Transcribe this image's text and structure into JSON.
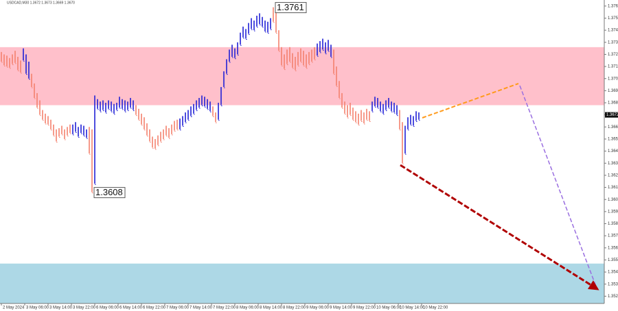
{
  "chart_data": {
    "type": "hlbars",
    "title": "USDCAD,M30 1.3672 1.3673 1.3669 1.3670",
    "ylim": [
      1.3516,
      1.3767
    ],
    "yticks": [
      1.3762,
      1.3752,
      1.3742,
      1.3732,
      1.3722,
      1.3712,
      1.3702,
      1.3692,
      1.3682,
      1.3672,
      1.3662,
      1.3652,
      1.3642,
      1.3632,
      1.3622,
      1.3612,
      1.3602,
      1.3592,
      1.3582,
      1.3572,
      1.3562,
      1.3552,
      1.3542,
      1.3532,
      1.3522
    ],
    "xlabels": [
      "2 May 2024",
      "3 May 06:00",
      "3 May 14:00",
      "3 May 22:00",
      "6 May 06:00",
      "6 May 14:00",
      "6 May 22:00",
      "7 May 06:00",
      "7 May 14:00",
      "7 May 22:00",
      "8 May 06:00",
      "8 May 14:00",
      "8 May 22:00",
      "9 May 06:00",
      "9 May 14:00",
      "9 May 22:00",
      "10 May 06:00",
      "10 May 14:00",
      "10 May 22:00"
    ],
    "current_price": 1.3672,
    "annotations": [
      1.3761,
      1.3608
    ],
    "zones": [
      {
        "from": 1.3728,
        "to": 1.368,
        "color": "#ffc0cb"
      },
      {
        "from": 1.3549,
        "to": 1.3516,
        "color": "#add8e6"
      }
    ],
    "waves": [
      {
        "color": "#f4806d",
        "high": [
          1.3724,
          1.3722,
          1.3721,
          1.3719,
          1.3722,
          1.3725,
          1.372,
          1.3717
        ],
        "low": [
          1.3716,
          1.3713,
          1.3712,
          1.3711,
          1.3714,
          1.3715,
          1.3709,
          1.3707
        ]
      },
      {
        "color": "#1f1fd6",
        "high": [
          1.3727,
          1.3722,
          1.3716
        ],
        "low": [
          1.3717,
          1.3706,
          1.3702
        ]
      },
      {
        "color": "#f4806d",
        "high": [
          1.3706,
          1.3698,
          1.369,
          1.3684,
          1.3676,
          1.3673,
          1.3671,
          1.3668,
          1.3664,
          1.366,
          1.3661,
          1.3663,
          1.366,
          1.3662,
          1.3664
        ],
        "low": [
          1.3695,
          1.3686,
          1.3678,
          1.3672,
          1.3668,
          1.3665,
          1.3664,
          1.366,
          1.3655,
          1.365,
          1.3654,
          1.3656,
          1.3652,
          1.3655,
          1.3657
        ]
      },
      {
        "color": "#1f1fd6",
        "high": [
          1.3664,
          1.3666,
          1.3662,
          1.3664,
          1.3663,
          1.366
        ],
        "low": [
          1.3656,
          1.3658,
          1.3654,
          1.3657,
          1.3655,
          1.3653
        ]
      },
      {
        "color": "#f4806d",
        "high": [
          1.3662,
          1.366
        ],
        "low": [
          1.364,
          1.3608
        ]
      },
      {
        "color": "#1f1fd6",
        "high": [
          1.3688,
          1.3685,
          1.3683,
          1.3684,
          1.3682,
          1.3684,
          1.3683,
          1.3681,
          1.3682,
          1.3687,
          1.3685,
          1.3684,
          1.3683,
          1.3686,
          1.3684
        ],
        "low": [
          1.3615,
          1.3677,
          1.3675,
          1.3676,
          1.3674,
          1.3677,
          1.3675,
          1.3673,
          1.3676,
          1.3678,
          1.3677,
          1.3675,
          1.3676,
          1.3678,
          1.3676
        ]
      },
      {
        "color": "#f4806d",
        "high": [
          1.368,
          1.3677,
          1.3673,
          1.367,
          1.3665,
          1.366,
          1.3654,
          1.3652,
          1.3655,
          1.3658,
          1.366,
          1.3663,
          1.3661,
          1.3664,
          1.3667,
          1.3668
        ],
        "low": [
          1.3672,
          1.3668,
          1.3664,
          1.366,
          1.3655,
          1.365,
          1.3645,
          1.3644,
          1.3647,
          1.365,
          1.3652,
          1.3655,
          1.3653,
          1.3656,
          1.3659,
          1.366
        ]
      },
      {
        "color": "#1f1fd6",
        "high": [
          1.3669,
          1.3671,
          1.3674,
          1.3676,
          1.3679,
          1.3681,
          1.3684,
          1.3686,
          1.3688,
          1.3687,
          1.3685,
          1.3683
        ],
        "low": [
          1.366,
          1.3663,
          1.3666,
          1.3668,
          1.3671,
          1.3673,
          1.3676,
          1.3678,
          1.368,
          1.3679,
          1.3677,
          1.3675
        ]
      },
      {
        "color": "#f4806d",
        "high": [
          1.3679,
          1.3674
        ],
        "low": [
          1.3671,
          1.3666
        ]
      },
      {
        "color": "#1f1fd6",
        "high": [
          1.3682,
          1.3695,
          1.3708,
          1.3718,
          1.3726,
          1.373,
          1.3727,
          1.3732,
          1.374,
          1.3745,
          1.3743,
          1.3748,
          1.3752,
          1.375,
          1.3754,
          1.3756,
          1.3753,
          1.375,
          1.3749,
          1.3752
        ],
        "low": [
          1.3668,
          1.368,
          1.3695,
          1.3706,
          1.3716,
          1.372,
          1.3719,
          1.3722,
          1.373,
          1.3736,
          1.3735,
          1.3739,
          1.3743,
          1.3742,
          1.3745,
          1.3747,
          1.3745,
          1.3741,
          1.374,
          1.3743
        ]
      },
      {
        "color": "#f4806d",
        "high": [
          1.3761,
          1.3757,
          1.3742,
          1.3728,
          1.3722,
          1.3726,
          1.3728,
          1.3723,
          1.372,
          1.3724,
          1.3727,
          1.3725,
          1.3722,
          1.3724,
          1.3726,
          1.3728
        ],
        "low": [
          1.3749,
          1.374,
          1.3725,
          1.3713,
          1.371,
          1.3714,
          1.3716,
          1.3711,
          1.3709,
          1.3713,
          1.3716,
          1.3713,
          1.3711,
          1.3714,
          1.3716,
          1.3718
        ]
      },
      {
        "color": "#1f1fd6",
        "high": [
          1.3731,
          1.3733,
          1.3735,
          1.3732,
          1.3734,
          1.373
        ],
        "low": [
          1.3721,
          1.3724,
          1.3726,
          1.3723,
          1.3725,
          1.372
        ]
      },
      {
        "color": "#f4806d",
        "high": [
          1.3726,
          1.3712,
          1.37,
          1.369,
          1.3683,
          1.368,
          1.3682,
          1.3678,
          1.3675,
          1.3673,
          1.3676,
          1.3674,
          1.3677,
          1.3675
        ],
        "low": [
          1.3706,
          1.3696,
          1.3686,
          1.3678,
          1.3673,
          1.367,
          1.3672,
          1.3668,
          1.3666,
          1.3664,
          1.3667,
          1.3665,
          1.3668,
          1.3667
        ]
      },
      {
        "color": "#1f1fd6",
        "high": [
          1.3683,
          1.3687,
          1.3686,
          1.3683,
          1.3681,
          1.3684,
          1.3686,
          1.3683,
          1.3682,
          1.368
        ],
        "low": [
          1.3675,
          1.3679,
          1.3678,
          1.3675,
          1.3673,
          1.3676,
          1.3678,
          1.3675,
          1.3674,
          1.3672
        ]
      },
      {
        "color": "#f4806d",
        "high": [
          1.3676,
          1.3666
        ],
        "low": [
          1.366,
          1.3632
        ]
      },
      {
        "color": "#1f1fd6",
        "high": [
          1.3663,
          1.367,
          1.3672,
          1.3671,
          1.3675,
          1.3674
        ],
        "low": [
          1.364,
          1.366,
          1.3664,
          1.3663,
          1.3667,
          1.3668
        ]
      }
    ]
  }
}
